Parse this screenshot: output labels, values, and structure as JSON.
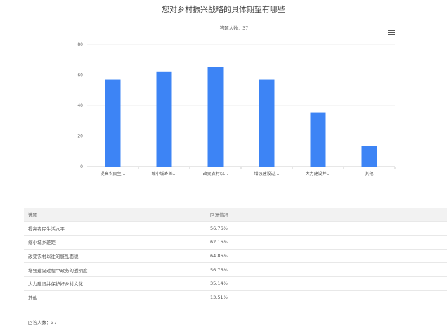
{
  "title": "您对乡村振兴战略的具体期望有哪些",
  "respondent_label": "答题人数：37",
  "chart_data": {
    "type": "bar",
    "title": "您对乡村振兴战略的具体期望有哪些",
    "subtitle": "答题人数：37",
    "categories": [
      "提高农民生...",
      "缩小城乡差...",
      "改变农村以...",
      "增强建设过...",
      "大力建设并...",
      "其他"
    ],
    "values": [
      56.76,
      62.16,
      64.86,
      56.76,
      35.14,
      13.51
    ],
    "ylim": [
      0,
      80
    ],
    "yticks": [
      0,
      20,
      40,
      60,
      80
    ],
    "grid": true,
    "bar_color": "#3d84f5"
  },
  "table": {
    "headers": [
      "选项",
      "回复情况"
    ],
    "rows": [
      {
        "option": "提高农民生活水平",
        "value": "56.76%"
      },
      {
        "option": "缩小城乡差距",
        "value": "62.16%"
      },
      {
        "option": "改变农村以往的脏乱面貌",
        "value": "64.86%"
      },
      {
        "option": "增强建设过程中政务的透明度",
        "value": "56.76%"
      },
      {
        "option": "大力建设并保护好乡村文化",
        "value": "35.14%"
      },
      {
        "option": "其他",
        "value": "13.51%"
      }
    ],
    "footer": "回答人数：37"
  },
  "icons": {
    "menu": "hamburger-menu-icon"
  }
}
